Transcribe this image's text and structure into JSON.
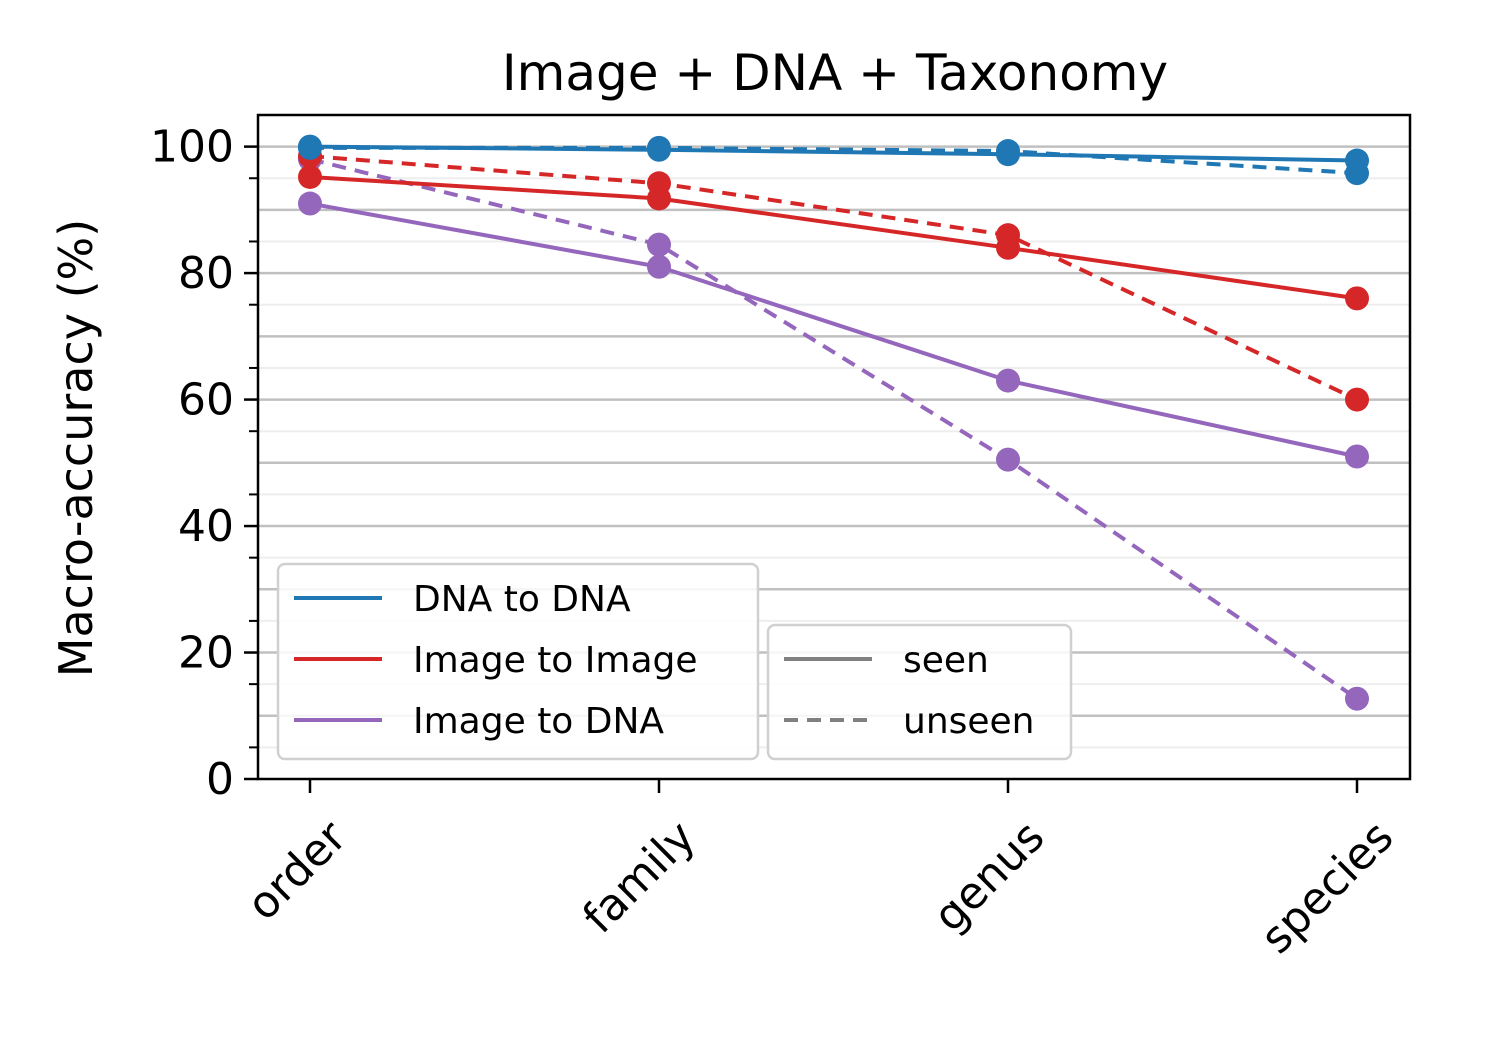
{
  "chart_data": {
    "type": "line",
    "title": "Image + DNA + Taxonomy",
    "xlabel": "",
    "ylabel": "Macro-accuracy (%)",
    "categories": [
      "order",
      "family",
      "genus",
      "species"
    ],
    "ylim": [
      0,
      105
    ],
    "yticks": [
      0,
      20,
      40,
      60,
      80,
      100
    ],
    "grid": "horizontal",
    "series": [
      {
        "name": "DNA to DNA",
        "style": "seen",
        "color": "#1f77b4",
        "values": [
          100,
          99.5,
          98.8,
          97.8
        ]
      },
      {
        "name": "DNA to DNA",
        "style": "unseen",
        "color": "#1f77b4",
        "values": [
          99.8,
          99.8,
          99.3,
          95.8
        ]
      },
      {
        "name": "Image to Image",
        "style": "seen",
        "color": "#d62728",
        "values": [
          95.2,
          91.8,
          84.0,
          76.0
        ]
      },
      {
        "name": "Image to Image",
        "style": "unseen",
        "color": "#d62728",
        "values": [
          98.5,
          94.2,
          86.0,
          60.0
        ]
      },
      {
        "name": "Image to DNA",
        "style": "seen",
        "color": "#9467bd",
        "values": [
          91.0,
          81.0,
          63.0,
          51.0
        ]
      },
      {
        "name": "Image to DNA",
        "style": "unseen",
        "color": "#9467bd",
        "values": [
          98.0,
          84.5,
          50.5,
          12.7
        ]
      }
    ],
    "legend_series": {
      "placement": "lower-left",
      "entries": [
        {
          "label": "DNA to DNA",
          "color": "#1f77b4"
        },
        {
          "label": "Image to Image",
          "color": "#d62728"
        },
        {
          "label": "Image to DNA",
          "color": "#9467bd"
        }
      ]
    },
    "legend_style": {
      "placement": "lower-center",
      "entries": [
        {
          "label": "seen",
          "dash": "solid",
          "color": "#808080"
        },
        {
          "label": "unseen",
          "dash": "dashed",
          "color": "#808080"
        }
      ]
    }
  }
}
